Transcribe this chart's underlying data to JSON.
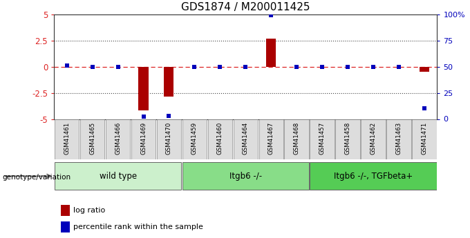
{
  "title": "GDS1874 / M200011425",
  "samples": [
    "GSM41461",
    "GSM41465",
    "GSM41466",
    "GSM41469",
    "GSM41470",
    "GSM41459",
    "GSM41460",
    "GSM41464",
    "GSM41467",
    "GSM41468",
    "GSM41457",
    "GSM41458",
    "GSM41462",
    "GSM41463",
    "GSM41471"
  ],
  "log_ratio": [
    0.03,
    0.0,
    0.0,
    -4.2,
    -2.85,
    0.0,
    0.0,
    0.0,
    2.7,
    0.0,
    0.0,
    0.0,
    0.0,
    0.0,
    -0.52
  ],
  "percentile": [
    51,
    50,
    50,
    2,
    3,
    50,
    50,
    50,
    99,
    50,
    50,
    50,
    50,
    50,
    10
  ],
  "groups": [
    {
      "label": "wild type",
      "start": 0,
      "end": 5,
      "color": "#ccf0cc"
    },
    {
      "label": "Itgb6 -/-",
      "start": 5,
      "end": 10,
      "color": "#88dd88"
    },
    {
      "label": "Itgb6 -/-, TGFbeta+",
      "start": 10,
      "end": 15,
      "color": "#55cc55"
    }
  ],
  "ylim": [
    -5,
    5
  ],
  "yticks_left": [
    -5,
    -2.5,
    0,
    2.5,
    5
  ],
  "yticks_right": [
    0,
    25,
    50,
    75,
    100
  ],
  "bar_color": "#aa0000",
  "dot_color": "#0000bb",
  "hline_zero_color": "#dd2222",
  "background_color": "#ffffff",
  "legend_red_label": "log ratio",
  "legend_blue_label": "percentile rank within the sample",
  "genotype_label": "genotype/variation",
  "sample_box_color": "#dddddd",
  "sample_box_edge": "#888888"
}
